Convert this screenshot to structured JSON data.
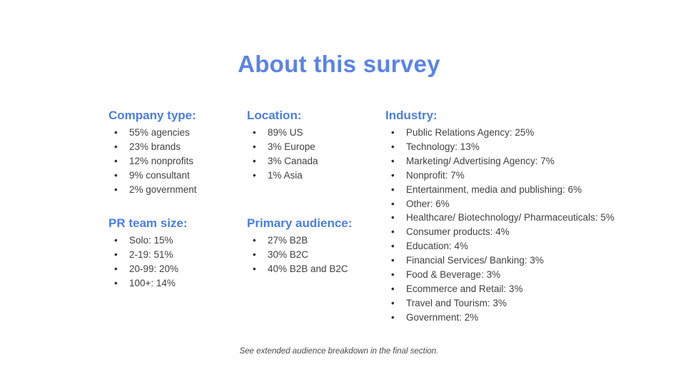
{
  "slide": {
    "title": "About this survey",
    "footer_note": "See extended audience breakdown in the final section."
  },
  "sections": {
    "company_type": {
      "heading": "Company type:",
      "items": [
        "55% agencies",
        "23% brands",
        "12% nonprofits",
        "9% consultant",
        "2% government"
      ]
    },
    "location": {
      "heading": "Location:",
      "items": [
        "89% US",
        "3% Europe",
        "3% Canada",
        "1% Asia"
      ]
    },
    "industry": {
      "heading": "Industry:",
      "items": [
        "Public Relations Agency: 25%",
        "Technology: 13%",
        "Marketing/ Advertising Agency: 7%",
        "Nonprofit: 7%",
        "Entertainment, media and publishing: 6%",
        "Other: 6%",
        "Healthcare/ Biotechnology/ Pharmaceuticals: 5%",
        "Consumer products: 4%",
        "Education: 4%",
        "Financial Services/ Banking: 3%",
        "Food & Beverage: 3%",
        "Ecommerce and Retail: 3%",
        "Travel and Tourism: 3%",
        "Government: 2%"
      ]
    },
    "pr_team_size": {
      "heading": "PR team size:",
      "items": [
        "Solo: 15%",
        "2-19: 51%",
        "20-99: 20%",
        "100+: 14%"
      ]
    },
    "primary_audience": {
      "heading": "Primary audience:",
      "items": [
        "27% B2B",
        "30% B2C",
        "40% B2B and B2C"
      ]
    }
  },
  "colors": {
    "title_blue": "#5b83e8",
    "heading_blue": "#4c7de2",
    "body_text": "#414141"
  }
}
